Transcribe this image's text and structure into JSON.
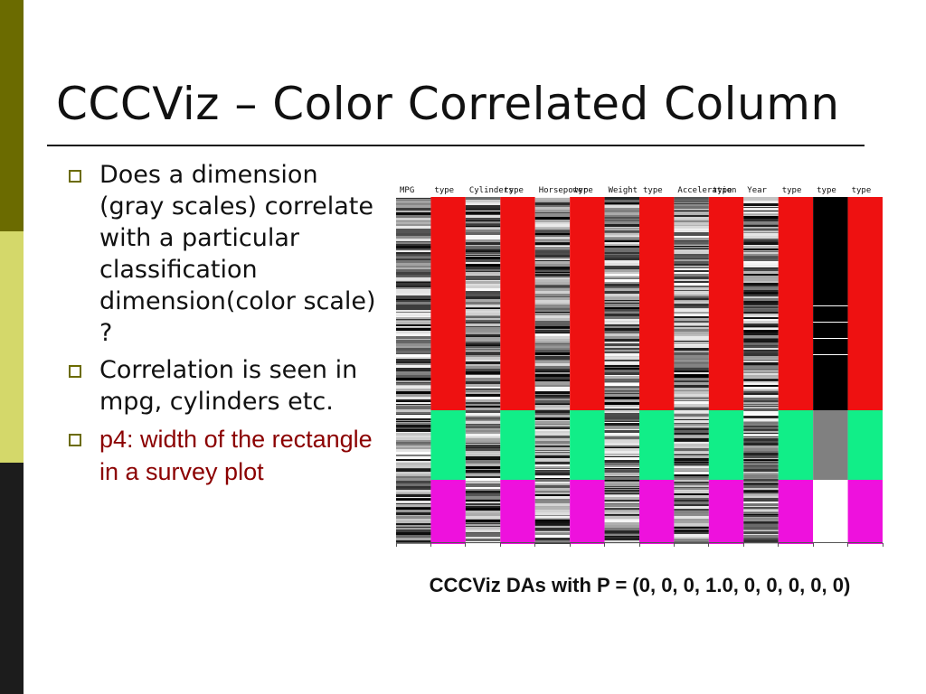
{
  "slide": {
    "title": "CCCViz – Color Correlated Column",
    "bullets": [
      {
        "text": "Does a dimension (gray scales) correlate with a particular classification dimension(color scale) ?",
        "highlight": false
      },
      {
        "text": "Correlation is seen in mpg, cylinders etc.",
        "highlight": false
      },
      {
        "text": "p4: width of the rectangle in a survey plot",
        "highlight": true
      }
    ],
    "caption": "CCCViz DAs with P = (0, 0, 0, 1.0, 0, 0, 0, 0, 0)"
  },
  "colors": {
    "accent_dark": "#6b6b00",
    "accent_light": "#d4d86a",
    "sidebar_dark": "#1c1c1c",
    "class_red": "#ee1111",
    "class_green": "#11ee88",
    "class_magenta": "#ee11dd",
    "highlight_text": "#8b0000"
  },
  "figure": {
    "column_labels": [
      "MPG",
      "type",
      "Cylinders",
      "type",
      "Horsepower",
      "type",
      "Weight",
      "type",
      "Acceleration",
      "type",
      "Year",
      "type",
      "type",
      "type"
    ],
    "column_kinds": [
      "gray",
      "class",
      "gray",
      "class",
      "gray",
      "class",
      "gray",
      "class",
      "gray",
      "class",
      "gray",
      "class",
      "special",
      "class"
    ]
  }
}
